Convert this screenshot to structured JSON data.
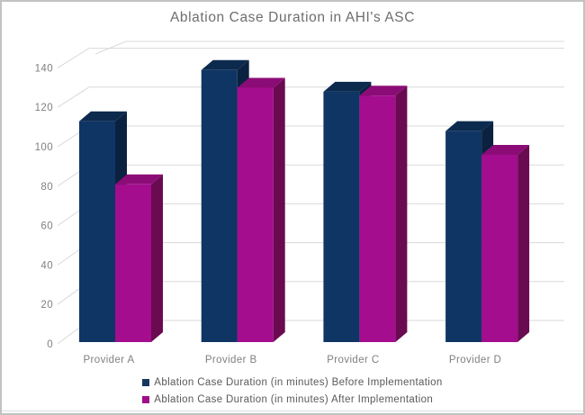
{
  "window": {
    "background": "#ffffff",
    "frame_border_color": "#c2c2c2"
  },
  "chart_data": {
    "type": "bar",
    "projection": "3d",
    "title": "Ablation Case Duration in AHI's ASC",
    "categories": [
      "Provider A",
      "Provider B",
      "Provider C",
      "Provider D"
    ],
    "series": [
      {
        "name": "Ablation Case Duration (in minutes) Before Implementation",
        "values": [
          112,
          138,
          127,
          107
        ],
        "color": "#0F3564",
        "side_color": "#0A2240",
        "top_color": "#0C2A4E",
        "legend_color": "#17375E"
      },
      {
        "name": "Ablation Case Duration (in minutes) After Implementation",
        "values": [
          80,
          129,
          125,
          95
        ],
        "color": "#A30D8E",
        "side_color": "#6A0A50",
        "top_color": "#8C0C77",
        "legend_color": "#A00D8C"
      }
    ],
    "xlabel": "",
    "ylabel": "",
    "ylim": [
      0,
      140
    ],
    "yticks": [
      0,
      20,
      40,
      60,
      80,
      100,
      120,
      140
    ],
    "grid": true,
    "legend_position": "bottom",
    "colors": {
      "gridline": "#d9d9d9",
      "axis_text": "#808080",
      "category_text": "#808080",
      "legend_text": "#595959",
      "title_text": "#6e6e6e"
    }
  }
}
